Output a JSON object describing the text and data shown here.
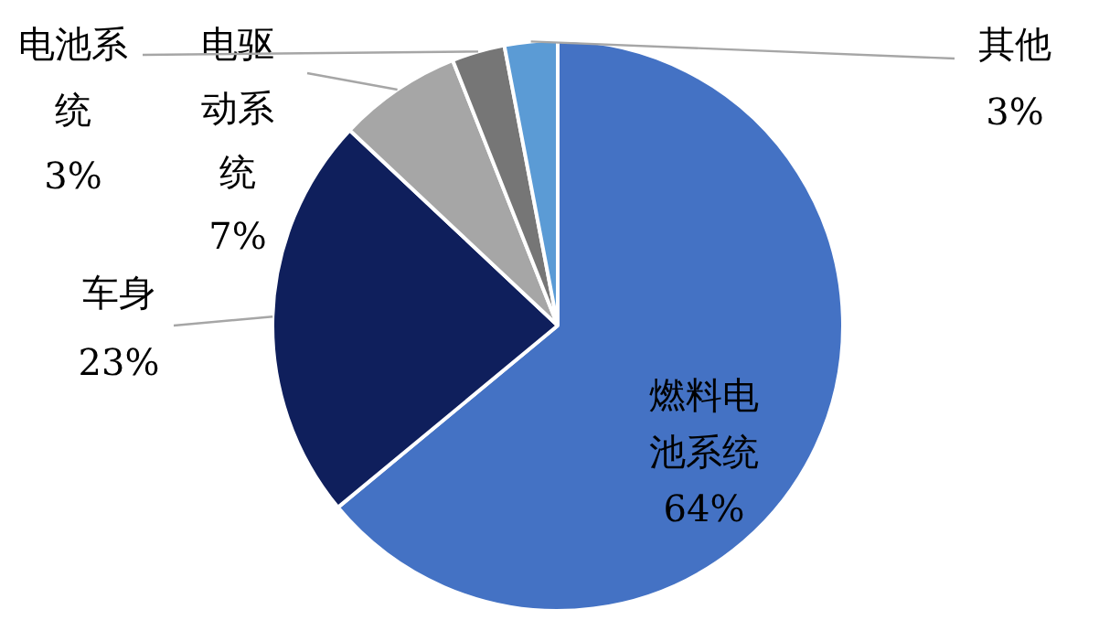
{
  "chart_data": {
    "type": "pie",
    "categories": [
      "燃料电池系统",
      "车身",
      "电驱动系统",
      "电池系统",
      "其他"
    ],
    "values": [
      64,
      23,
      7,
      3,
      3
    ],
    "colors": [
      "#4472c4",
      "#0f1f5c",
      "#a6a6a6",
      "#767676",
      "#5b9bd5"
    ],
    "value_labels": [
      "64%",
      "23%",
      "7%",
      "3%",
      "3%"
    ],
    "legend": false
  }
}
